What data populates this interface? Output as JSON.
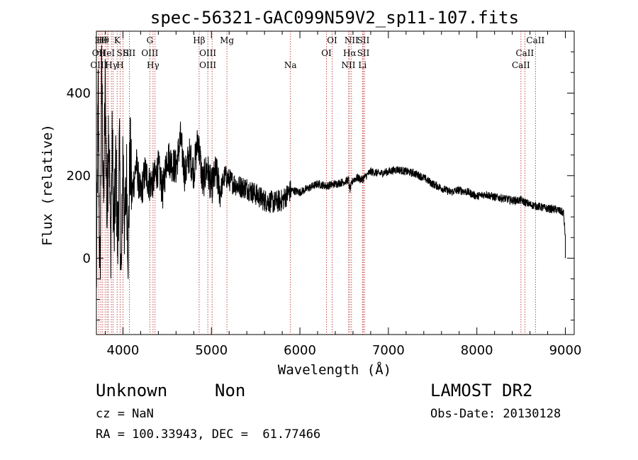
{
  "chart_data": {
    "type": "line",
    "title": "spec-56321-GAC099N59V2_sp11-107.fits",
    "xlabel": "Wavelength (Å)",
    "ylabel": "Flux (relative)",
    "xlim": [
      3700,
      9100
    ],
    "ylim": [
      -185,
      550
    ],
    "x_ticks": [
      4000,
      5000,
      6000,
      7000,
      8000,
      9000
    ],
    "y_ticks": [
      0,
      200,
      400
    ],
    "grid": false,
    "line_color": "#000000",
    "marker_color": "#b22222",
    "series": [
      {
        "x": [
          3700,
          3720,
          3740,
          3760,
          3780,
          3800,
          3820,
          3840,
          3860,
          3880,
          3900,
          3920,
          3940,
          3960,
          3980,
          4000,
          4020,
          4040,
          4060,
          4080,
          4100,
          4150,
          4200,
          4250,
          4300,
          4350,
          4400,
          4450,
          4500,
          4550,
          4600,
          4650,
          4700,
          4750,
          4800,
          4850,
          4900,
          4950,
          5000,
          5050,
          5100,
          5150,
          5200,
          5300,
          5400,
          5500,
          5600,
          5700,
          5800,
          5900,
          6000,
          6100,
          6200,
          6300,
          6400,
          6500,
          6550,
          6563,
          6600,
          6650,
          6700,
          6800,
          6900,
          7000,
          7100,
          7200,
          7300,
          7400,
          7500,
          7600,
          7700,
          7800,
          7900,
          8000,
          8100,
          8200,
          8300,
          8400,
          8500,
          8600,
          8700,
          8800,
          8900,
          8980,
          9000
        ],
        "values": [
          -80,
          390,
          -70,
          450,
          120,
          420,
          80,
          360,
          20,
          280,
          40,
          240,
          20,
          260,
          -80,
          270,
          60,
          200,
          20,
          260,
          150,
          230,
          150,
          210,
          180,
          190,
          220,
          160,
          250,
          230,
          220,
          290,
          200,
          250,
          210,
          290,
          180,
          220,
          170,
          210,
          160,
          200,
          190,
          175,
          170,
          155,
          140,
          135,
          140,
          165,
          160,
          170,
          180,
          175,
          180,
          185,
          190,
          165,
          190,
          195,
          190,
          210,
          205,
          210,
          215,
          210,
          205,
          195,
          180,
          170,
          160,
          165,
          160,
          150,
          155,
          148,
          145,
          140,
          140,
          130,
          125,
          120,
          118,
          110,
          50
        ]
      }
    ],
    "lines": [
      {
        "wavelength": 3727,
        "rows": [
          1,
          2
        ],
        "labels": [
          "OII",
          "OIII"
        ]
      },
      {
        "wavelength": 3750,
        "rows": [
          0
        ],
        "labels": [
          "Hθ"
        ]
      },
      {
        "wavelength": 3771,
        "rows": [
          0
        ],
        "labels": [
          "Hθ"
        ]
      },
      {
        "wavelength": 3798,
        "rows": [],
        "labels": []
      },
      {
        "wavelength": 3820,
        "rows": [
          1
        ],
        "labels": [
          "HeI"
        ]
      },
      {
        "wavelength": 3835,
        "rows": [],
        "labels": []
      },
      {
        "wavelength": 3869,
        "rows": [
          2
        ],
        "labels": [
          "Hγ"
        ]
      },
      {
        "wavelength": 3889,
        "rows": [],
        "labels": []
      },
      {
        "wavelength": 3934,
        "rows": [
          0
        ],
        "labels": [
          "K"
        ]
      },
      {
        "wavelength": 3968,
        "rows": [
          2
        ],
        "labels": [
          "H"
        ]
      },
      {
        "wavelength": 4000,
        "rows": [
          1
        ],
        "labels": [
          "SII"
        ]
      },
      {
        "wavelength": 4072,
        "rows": [
          1
        ],
        "labels": [
          "SII"
        ]
      },
      {
        "wavelength": 4304,
        "rows": [
          0,
          1
        ],
        "labels": [
          "G",
          "OIII"
        ]
      },
      {
        "wavelength": 4340,
        "rows": [
          2
        ],
        "labels": [
          "Hγ"
        ]
      },
      {
        "wavelength": 4363,
        "rows": [],
        "labels": []
      },
      {
        "wavelength": 4861,
        "rows": [
          0
        ],
        "labels": [
          "Hβ"
        ]
      },
      {
        "wavelength": 4959,
        "rows": [
          1,
          2
        ],
        "labels": [
          "OIII",
          "OIII"
        ]
      },
      {
        "wavelength": 5007,
        "rows": [],
        "labels": []
      },
      {
        "wavelength": 5175,
        "rows": [
          0
        ],
        "labels": [
          "Mg"
        ]
      },
      {
        "wavelength": 5893,
        "rows": [
          2
        ],
        "labels": [
          "Na"
        ]
      },
      {
        "wavelength": 6300,
        "rows": [
          1
        ],
        "labels": [
          "OI"
        ]
      },
      {
        "wavelength": 6364,
        "rows": [
          0
        ],
        "labels": [
          "OI"
        ]
      },
      {
        "wavelength": 6548,
        "rows": [
          2
        ],
        "labels": [
          "NII"
        ]
      },
      {
        "wavelength": 6563,
        "rows": [
          1
        ],
        "labels": [
          "Hα"
        ]
      },
      {
        "wavelength": 6583,
        "rows": [
          0
        ],
        "labels": [
          "NII"
        ]
      },
      {
        "wavelength": 6707,
        "rows": [
          2
        ],
        "labels": [
          "Li"
        ]
      },
      {
        "wavelength": 6717,
        "rows": [
          0,
          1
        ],
        "labels": [
          "SII",
          "SII"
        ]
      },
      {
        "wavelength": 6731,
        "rows": [],
        "labels": []
      },
      {
        "wavelength": 8498,
        "rows": [
          2
        ],
        "labels": [
          "CaII"
        ]
      },
      {
        "wavelength": 8542,
        "rows": [
          1
        ],
        "labels": [
          "CaII"
        ]
      },
      {
        "wavelength": 8662,
        "rows": [
          0
        ],
        "labels": [
          "CaII"
        ]
      }
    ]
  },
  "info": {
    "class": "Unknown",
    "subclass": "Non",
    "survey": "LAMOST DR2",
    "cz": "cz = NaN",
    "obs_date": "Obs-Date: 20130128",
    "coords": "RA = 100.33943, DEC =  61.77466"
  }
}
